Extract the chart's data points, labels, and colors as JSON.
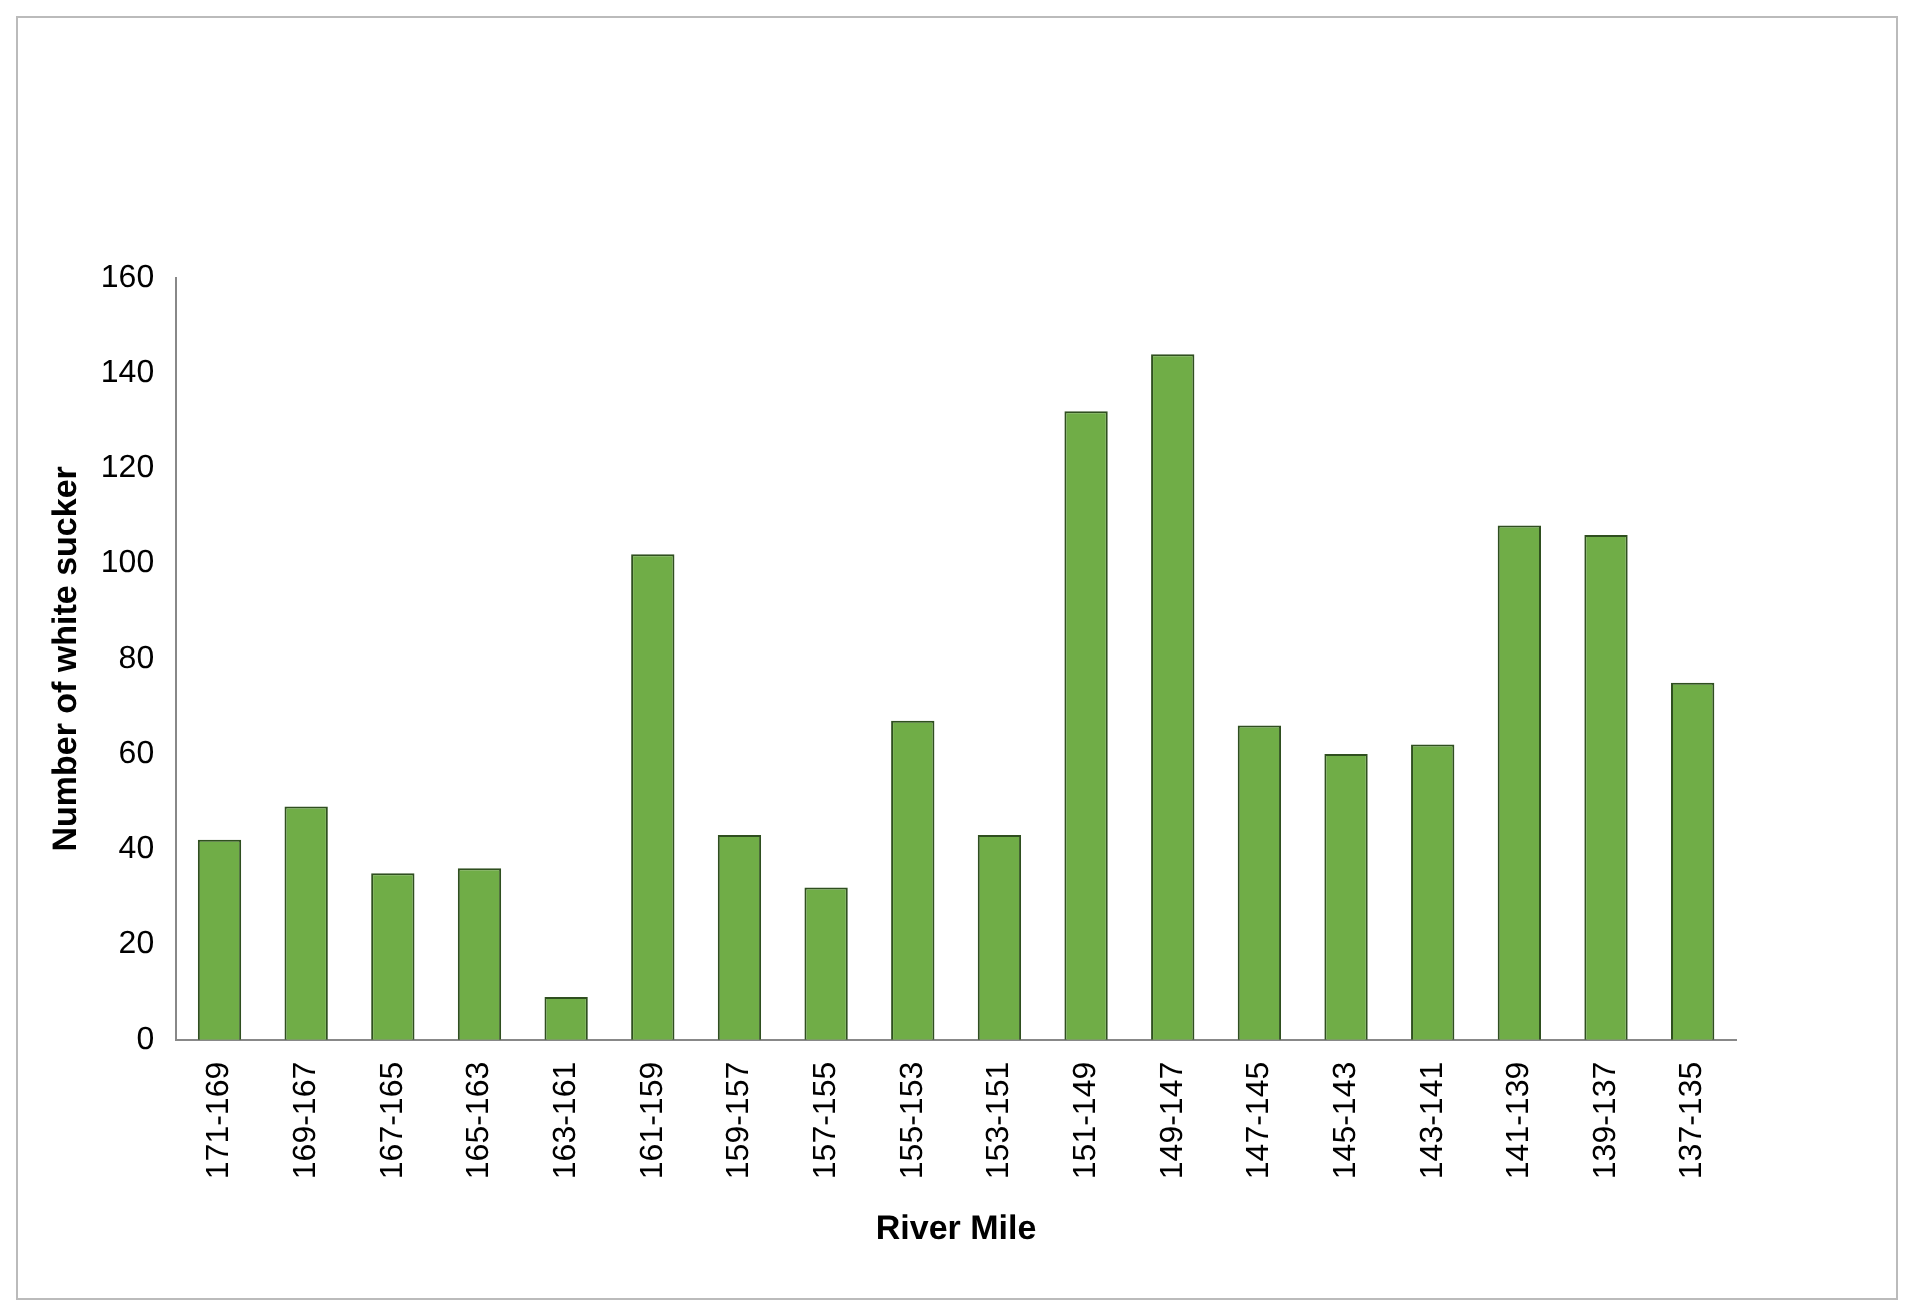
{
  "chart_data": {
    "type": "bar",
    "xlabel": "River Mile",
    "ylabel": "Number of white sucker",
    "categories": [
      "171-169",
      "169-167",
      "167-165",
      "165-163",
      "163-161",
      "161-159",
      "159-157",
      "157-155",
      "155-153",
      "153-151",
      "151-149",
      "149-147",
      "147-145",
      "145-143",
      "143-141",
      "141-139",
      "139-137",
      "137-135"
    ],
    "values": [
      42,
      49,
      35,
      36,
      9,
      102,
      43,
      32,
      67,
      43,
      132,
      144,
      66,
      60,
      62,
      108,
      106,
      75
    ],
    "color": "#70ad47",
    "ylim": [
      0,
      160
    ],
    "yticks": [
      0,
      20,
      40,
      60,
      80,
      100,
      120,
      140,
      160
    ],
    "grid": false,
    "legend": false
  }
}
